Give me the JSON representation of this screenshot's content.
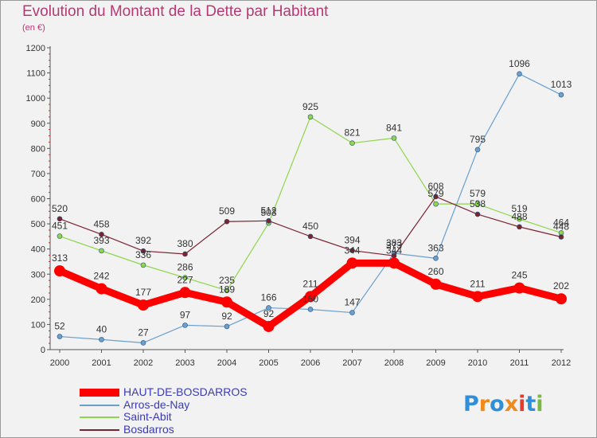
{
  "chart_data": {
    "type": "line",
    "title": "Evolution du Montant de la Dette par Habitant",
    "subtitle": "(en €)",
    "x": [
      "2000",
      "2001",
      "2002",
      "2003",
      "2004",
      "2005",
      "2006",
      "2007",
      "2008",
      "2009",
      "2010",
      "2011",
      "2012"
    ],
    "ylim": [
      0,
      1200
    ],
    "yticks": [
      0,
      100,
      200,
      300,
      400,
      500,
      600,
      700,
      800,
      900,
      1000,
      1100,
      1200
    ],
    "grid": false,
    "legend_position": "bottom-left",
    "series": [
      {
        "name": "HAUT-DE-BOSDARROS",
        "color": "#ff0000",
        "values": [
          313,
          242,
          177,
          227,
          189,
          92,
          211,
          344,
          344,
          260,
          211,
          245,
          202
        ]
      },
      {
        "name": "Arros-de-Nay",
        "color": "#6a9fce",
        "values": [
          52,
          40,
          27,
          97,
          92,
          166,
          160,
          147,
          383,
          363,
          795,
          1096,
          1013
        ]
      },
      {
        "name": "Saint-Abit",
        "color": "#8ed64c",
        "values": [
          451,
          393,
          336,
          286,
          235,
          503,
          925,
          821,
          841,
          579,
          579,
          519,
          464
        ]
      },
      {
        "name": "Bosdarros",
        "color": "#7a2430",
        "values": [
          520,
          458,
          392,
          380,
          509,
          512,
          450,
          394,
          373,
          608,
          538,
          488,
          448
        ]
      }
    ]
  },
  "logo": {
    "text": "Proxiti",
    "colors": [
      "#2f8fd8",
      "#f08a1c",
      "#2f8fd8",
      "#f08a1c",
      "#e23c2c",
      "#2f8fd8",
      "#79b845"
    ]
  }
}
